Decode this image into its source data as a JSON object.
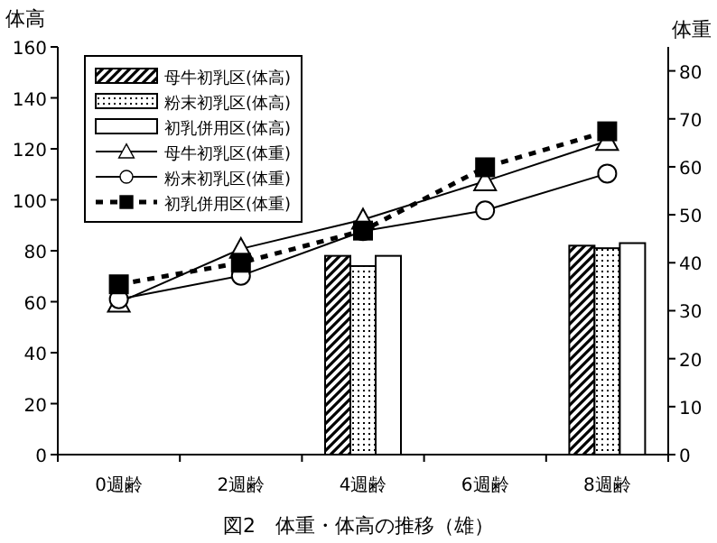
{
  "chart_data": {
    "type": "bar",
    "title": "図2　体重・体高の推移（雄）",
    "ylabel": "体高",
    "y2label": "体重",
    "categories": [
      "0週齢",
      "2週齢",
      "4週齢",
      "6週齢",
      "8週齢"
    ],
    "ylim": [
      0,
      160
    ],
    "yticks": [
      0,
      20,
      40,
      60,
      80,
      100,
      120,
      140,
      160
    ],
    "y2lim": [
      0,
      85
    ],
    "y2ticks": [
      0,
      10,
      20,
      30,
      40,
      50,
      60,
      70,
      80
    ],
    "grid": false,
    "legend": "top left",
    "series": [
      {
        "name": "母牛初乳区(体高)",
        "color": "#000000",
        "values": [
          null,
          null,
          78,
          null,
          82
        ]
      },
      {
        "name": "粉末初乳区(体高)",
        "color": "#000000",
        "values": [
          null,
          null,
          74,
          null,
          81
        ]
      },
      {
        "name": "初乳併用区(体高)",
        "color": "#ffffff",
        "values": [
          null,
          null,
          78,
          null,
          83
        ]
      },
      {
        "name": "母牛初乳区(体重)",
        "type": "line",
        "axis": "y2",
        "color": "#000000",
        "marker": "triangle",
        "line_style": "solid",
        "values": [
          31.7,
          42.9,
          49,
          57,
          65.4
        ]
      },
      {
        "name": "粉末初乳区(体重)",
        "type": "line",
        "axis": "y2",
        "color": "#000000",
        "marker": "circle",
        "line_style": "solid",
        "values": [
          32.4,
          37.3,
          46.6,
          50.9,
          58.6
        ]
      },
      {
        "name": "初乳併用区(体重)",
        "type": "line",
        "axis": "y2",
        "color": "#000000",
        "marker": "square",
        "line_style": "dashed",
        "values": [
          35.5,
          40,
          46.7,
          59.9,
          67.4
        ]
      }
    ]
  }
}
